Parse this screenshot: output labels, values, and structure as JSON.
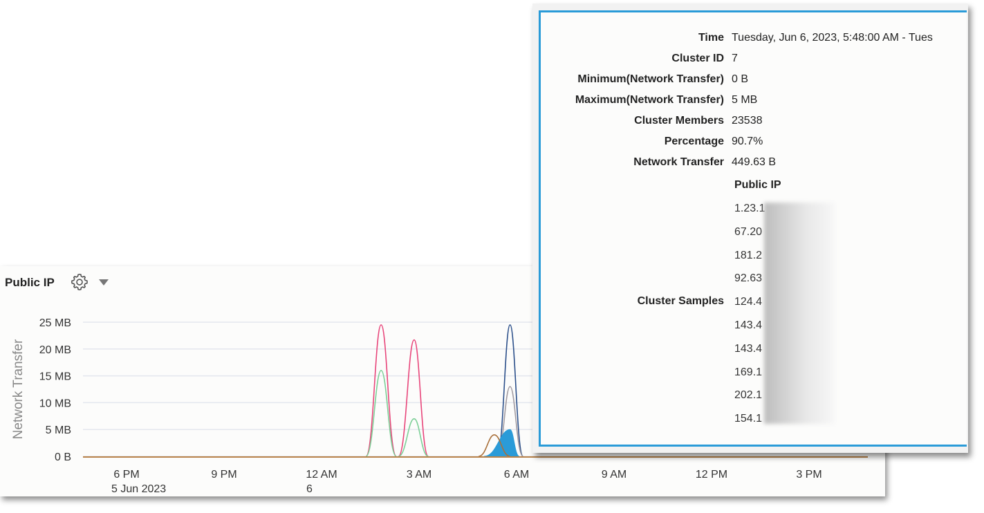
{
  "panel": {
    "title": "Public IP",
    "icons": [
      "gear-icon",
      "caret-down-icon"
    ]
  },
  "chart_data": {
    "type": "line",
    "ylabel": "Network Transfer",
    "yticks": [
      "0 B",
      "5 MB",
      "10 MB",
      "15 MB",
      "20 MB",
      "25 MB"
    ],
    "ylim": [
      0,
      25
    ],
    "xticks": [
      {
        "label": "6 PM",
        "sub": "5 Jun 2023"
      },
      {
        "label": "9 PM",
        "sub": ""
      },
      {
        "label": "12 AM",
        "sub": "6"
      },
      {
        "label": "3 AM",
        "sub": ""
      },
      {
        "label": "6 AM",
        "sub": ""
      },
      {
        "label": "9 AM",
        "sub": ""
      },
      {
        "label": "12 PM",
        "sub": ""
      },
      {
        "label": "3 PM",
        "sub": ""
      }
    ],
    "grid": true,
    "series": [
      {
        "color": "#e8457a",
        "peaks": [
          {
            "start": "01:22",
            "peak": "01:50",
            "end": "02:18",
            "value": 24.5
          },
          {
            "start": "02:22",
            "peak": "02:51",
            "end": "03:17",
            "value": 21.7
          }
        ]
      },
      {
        "color": "#7ccf97",
        "peaks": [
          {
            "start": "01:22",
            "peak": "01:50",
            "end": "02:18",
            "value": 16
          },
          {
            "start": "02:22",
            "peak": "02:51",
            "end": "03:17",
            "value": 7
          }
        ]
      },
      {
        "color": "#2b4f8a",
        "peaks": [
          {
            "start": "05:24",
            "peak": "05:48",
            "end": "06:12",
            "value": 24.5
          }
        ]
      },
      {
        "color": "#a09aa0",
        "peaks": [
          {
            "start": "05:24",
            "peak": "05:48",
            "end": "06:12",
            "value": 13
          }
        ]
      },
      {
        "color": "#2a9bd8",
        "fill": true,
        "peaks": [
          {
            "start": "05:00",
            "peak": "05:48",
            "end": "06:05",
            "value": 5
          }
        ]
      },
      {
        "color": "#a9703a",
        "peaks": [
          {
            "start": "04:50",
            "peak": "05:19",
            "end": "05:48",
            "value": 4
          }
        ]
      }
    ]
  },
  "tooltip": {
    "rows": [
      {
        "label": "Time",
        "value": "Tuesday, Jun 6, 2023, 5:48:00 AM - Tues"
      },
      {
        "label": "Cluster ID",
        "value": "7"
      },
      {
        "label": "Minimum(Network Transfer)",
        "value": "0 B"
      },
      {
        "label": "Maximum(Network Transfer)",
        "value": "5 MB"
      },
      {
        "label": "Cluster Members",
        "value": "23538"
      },
      {
        "label": "Percentage",
        "value": "90.7%"
      },
      {
        "label": "Network Transfer",
        "value": "449.63 B"
      }
    ],
    "samples_header": "Public IP",
    "samples_label": "Cluster Samples",
    "samples": [
      "1.23.1",
      "67.20",
      "181.2",
      "92.63",
      "124.4",
      "143.4",
      "143.4",
      "169.1",
      "202.1",
      "154.1"
    ]
  }
}
